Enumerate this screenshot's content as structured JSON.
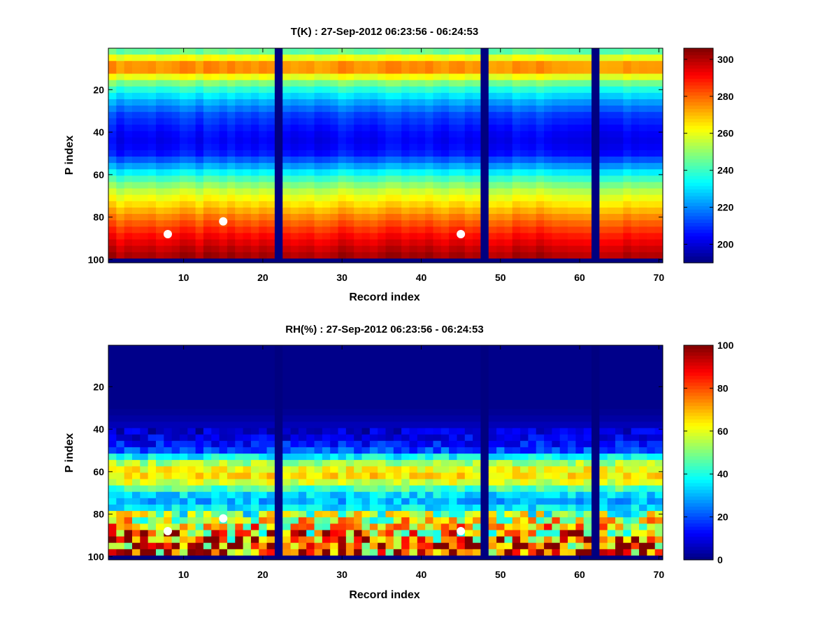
{
  "chart_data": [
    {
      "type": "heatmap",
      "title": "T(K) : 27-Sep-2012 06:23:56 - 06:24:53",
      "xlabel": "Record index",
      "ylabel": "P index",
      "xlim": [
        0.5,
        70.5
      ],
      "ylim": [
        0.5,
        101.5
      ],
      "y_reversed": true,
      "xticks": [
        10,
        20,
        30,
        40,
        50,
        60,
        70
      ],
      "yticks": [
        20,
        40,
        60,
        80,
        100
      ],
      "colorbar": {
        "clim": [
          190,
          306
        ],
        "ticks": [
          200,
          220,
          240,
          260,
          280,
          300
        ]
      },
      "colormap": "jet",
      "records": 70,
      "levels": 101,
      "missing_records": [
        22,
        48,
        62
      ],
      "bottom_row_missing": true,
      "profile_by_p_index": [
        [
          1,
          240
        ],
        [
          4,
          255
        ],
        [
          7,
          272
        ],
        [
          10,
          280
        ],
        [
          13,
          265
        ],
        [
          18,
          243
        ],
        [
          25,
          225
        ],
        [
          32,
          212
        ],
        [
          40,
          205
        ],
        [
          45,
          203
        ],
        [
          50,
          207
        ],
        [
          55,
          220
        ],
        [
          60,
          236
        ],
        [
          64,
          247
        ],
        [
          68,
          256
        ],
        [
          72,
          263
        ],
        [
          76,
          270
        ],
        [
          80,
          277
        ],
        [
          85,
          285
        ],
        [
          90,
          292
        ],
        [
          95,
          298
        ],
        [
          98,
          301
        ]
      ],
      "markers": [
        {
          "record": 8,
          "p_index": 88
        },
        {
          "record": 15,
          "p_index": 82
        },
        {
          "record": 45,
          "p_index": 88
        }
      ],
      "marker_color": "#ffffff"
    },
    {
      "type": "heatmap",
      "title": "RH(%) : 27-Sep-2012 06:23:56 - 06:24:53",
      "xlabel": "Record index",
      "ylabel": "P index",
      "xlim": [
        0.5,
        70.5
      ],
      "ylim": [
        0.5,
        101.5
      ],
      "y_reversed": true,
      "xticks": [
        10,
        20,
        30,
        40,
        50,
        60,
        70
      ],
      "yticks": [
        20,
        40,
        60,
        80,
        100
      ],
      "colorbar": {
        "clim": [
          0,
          100
        ],
        "ticks": [
          0,
          20,
          40,
          60,
          80,
          100
        ]
      },
      "colormap": "jet",
      "records": 70,
      "levels": 101,
      "missing_records": [
        22,
        48,
        62
      ],
      "bottom_row_missing": true,
      "profile_by_p_index": [
        [
          1,
          1
        ],
        [
          30,
          1
        ],
        [
          36,
          4
        ],
        [
          42,
          8
        ],
        [
          47,
          14
        ],
        [
          51,
          22
        ],
        [
          54,
          45
        ],
        [
          57,
          58
        ],
        [
          60,
          64
        ],
        [
          63,
          66
        ],
        [
          66,
          55
        ],
        [
          69,
          40
        ],
        [
          72,
          32
        ],
        [
          75,
          30
        ],
        [
          78,
          38
        ],
        [
          82,
          50
        ],
        [
          86,
          58
        ],
        [
          90,
          62
        ],
        [
          94,
          66
        ],
        [
          98,
          70
        ]
      ],
      "markers": [
        {
          "record": 8,
          "p_index": 88
        },
        {
          "record": 15,
          "p_index": 82
        },
        {
          "record": 45,
          "p_index": 88
        }
      ],
      "marker_color": "#ffffff"
    }
  ]
}
